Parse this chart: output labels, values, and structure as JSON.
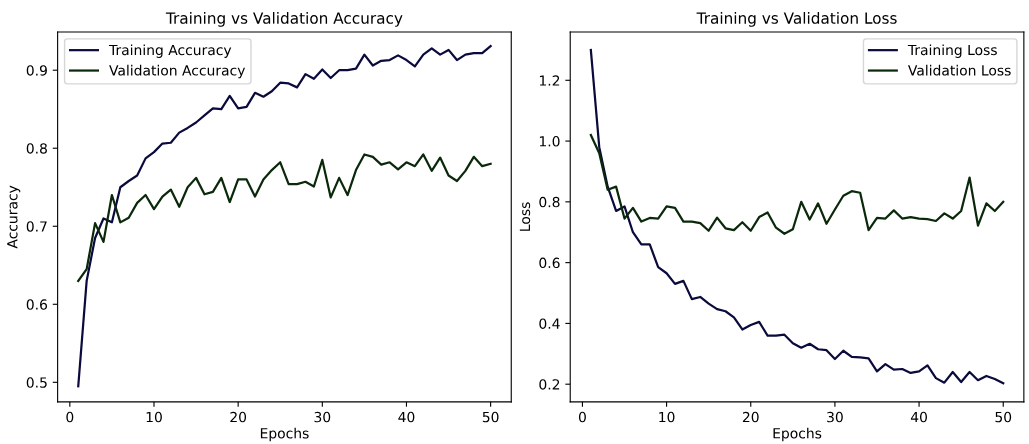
{
  "chart_data": [
    {
      "type": "line",
      "title": "Training vs Validation Accuracy",
      "xlabel": "Epochs",
      "ylabel": "Accuracy",
      "x": [
        1,
        2,
        3,
        4,
        5,
        6,
        7,
        8,
        9,
        10,
        11,
        12,
        13,
        14,
        15,
        16,
        17,
        18,
        19,
        20,
        21,
        22,
        23,
        24,
        25,
        26,
        27,
        28,
        29,
        30,
        31,
        32,
        33,
        34,
        35,
        36,
        37,
        38,
        39,
        40,
        41,
        42,
        43,
        44,
        45,
        46,
        47,
        48,
        49,
        50
      ],
      "series": [
        {
          "name": "Training Accuracy",
          "color": "#0a0a3c",
          "values": [
            0.495,
            0.63,
            0.685,
            0.71,
            0.705,
            0.75,
            0.758,
            0.765,
            0.787,
            0.795,
            0.806,
            0.807,
            0.82,
            0.826,
            0.833,
            0.842,
            0.851,
            0.85,
            0.867,
            0.851,
            0.853,
            0.871,
            0.866,
            0.873,
            0.884,
            0.883,
            0.878,
            0.895,
            0.889,
            0.901,
            0.89,
            0.9,
            0.9,
            0.902,
            0.92,
            0.906,
            0.912,
            0.913,
            0.919,
            0.913,
            0.905,
            0.92,
            0.928,
            0.92,
            0.926,
            0.913,
            0.92,
            0.922,
            0.922,
            0.931
          ]
        },
        {
          "name": "Validation Accuracy",
          "color": "#0a280a",
          "values": [
            0.63,
            0.645,
            0.704,
            0.68,
            0.74,
            0.705,
            0.711,
            0.73,
            0.74,
            0.722,
            0.738,
            0.747,
            0.725,
            0.75,
            0.762,
            0.741,
            0.744,
            0.762,
            0.731,
            0.76,
            0.76,
            0.738,
            0.76,
            0.772,
            0.782,
            0.754,
            0.754,
            0.757,
            0.751,
            0.785,
            0.737,
            0.762,
            0.74,
            0.772,
            0.792,
            0.789,
            0.779,
            0.782,
            0.773,
            0.782,
            0.777,
            0.792,
            0.771,
            0.788,
            0.765,
            0.758,
            0.771,
            0.789,
            0.777,
            0.78
          ]
        }
      ],
      "xlim": [
        -1.45,
        52.45
      ],
      "xticks": [
        0,
        10,
        20,
        30,
        40,
        50
      ],
      "ylim": [
        0.475,
        0.949
      ],
      "yticks": [
        0.5,
        0.6,
        0.7,
        0.8,
        0.9
      ],
      "legend": "top left",
      "grid": false
    },
    {
      "type": "line",
      "title": "Training vs Validation Loss",
      "xlabel": "Epochs",
      "ylabel": "Loss",
      "x": [
        1,
        2,
        3,
        4,
        5,
        6,
        7,
        8,
        9,
        10,
        11,
        12,
        13,
        14,
        15,
        16,
        17,
        18,
        19,
        20,
        21,
        22,
        23,
        24,
        25,
        26,
        27,
        28,
        29,
        30,
        31,
        32,
        33,
        34,
        35,
        36,
        37,
        38,
        39,
        40,
        41,
        42,
        43,
        44,
        45,
        46,
        47,
        48,
        49,
        50
      ],
      "series": [
        {
          "name": "Training Loss",
          "color": "#0a0a3c",
          "values": [
            1.3,
            0.98,
            0.85,
            0.77,
            0.785,
            0.7,
            0.66,
            0.66,
            0.585,
            0.565,
            0.53,
            0.54,
            0.48,
            0.487,
            0.465,
            0.447,
            0.44,
            0.42,
            0.38,
            0.395,
            0.405,
            0.36,
            0.36,
            0.363,
            0.335,
            0.32,
            0.333,
            0.315,
            0.312,
            0.283,
            0.31,
            0.29,
            0.288,
            0.285,
            0.242,
            0.266,
            0.248,
            0.25,
            0.237,
            0.242,
            0.262,
            0.22,
            0.205,
            0.24,
            0.207,
            0.24,
            0.213,
            0.227,
            0.217,
            0.203
          ]
        },
        {
          "name": "Validation Loss",
          "color": "#0a280a",
          "values": [
            1.02,
            0.96,
            0.84,
            0.85,
            0.745,
            0.78,
            0.735,
            0.747,
            0.745,
            0.785,
            0.78,
            0.735,
            0.735,
            0.73,
            0.705,
            0.748,
            0.713,
            0.707,
            0.733,
            0.705,
            0.75,
            0.765,
            0.715,
            0.695,
            0.71,
            0.8,
            0.742,
            0.795,
            0.728,
            0.775,
            0.82,
            0.835,
            0.83,
            0.707,
            0.747,
            0.745,
            0.772,
            0.745,
            0.75,
            0.745,
            0.743,
            0.737,
            0.762,
            0.745,
            0.77,
            0.88,
            0.722,
            0.795,
            0.77,
            0.8
          ]
        }
      ],
      "xlim": [
        -1.45,
        52.45
      ],
      "xticks": [
        0,
        10,
        20,
        30,
        40,
        50
      ],
      "ylim": [
        0.142,
        1.359
      ],
      "yticks": [
        0.2,
        0.4,
        0.6,
        0.8,
        {
          "value": 1,
          "label": "1.0"
        },
        1.2
      ],
      "legend": "top right",
      "grid": false
    }
  ]
}
